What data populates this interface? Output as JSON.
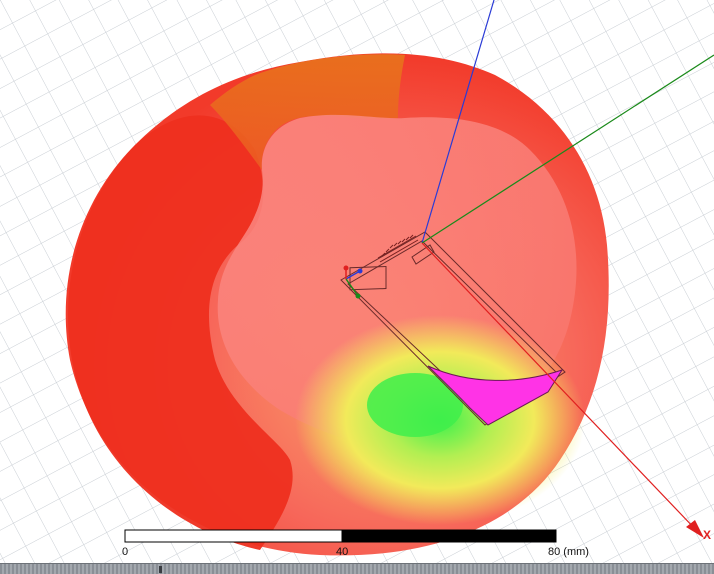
{
  "viewer": {
    "scale_bar": {
      "labels": [
        "0",
        "40",
        "80 (mm)"
      ],
      "colors": [
        "#ffffff",
        "#000000"
      ]
    },
    "axes": {
      "x_label": "X",
      "x_color": "#e02020",
      "y_color": "#1a8a1a",
      "z_color": "#2a3bd6"
    },
    "pattern_colors": {
      "high": "#f5463a",
      "mid": "#f0e055",
      "low": "#3ef04a",
      "substrate": "#ff33e6"
    }
  }
}
